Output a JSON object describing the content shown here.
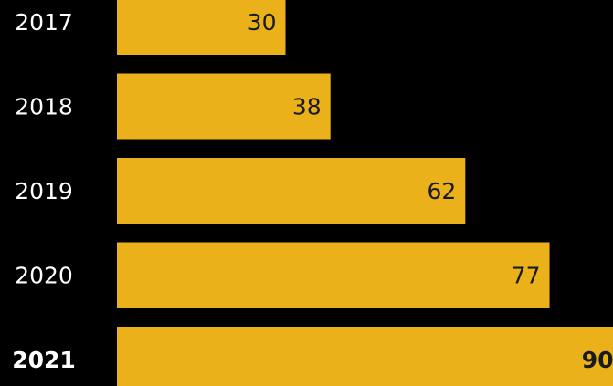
{
  "chart_data": {
    "type": "bar",
    "orientation": "horizontal",
    "categories": [
      "2017",
      "2018",
      "2019",
      "2020",
      "2021"
    ],
    "values": [
      30,
      38,
      62,
      77,
      90
    ],
    "color": "#ebb11a",
    "background": "#000000",
    "label_color": "#ffffff",
    "value_label_color": "#1a1a1a",
    "highlight_index": 4
  }
}
